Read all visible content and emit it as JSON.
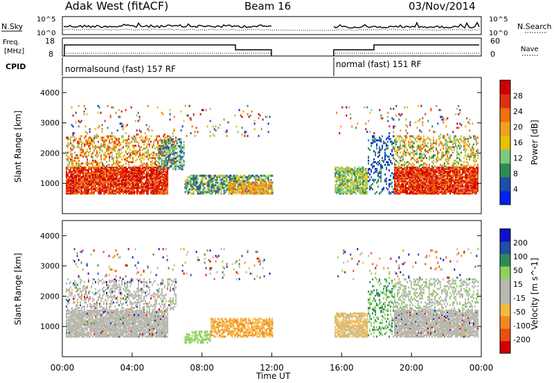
{
  "header": {
    "station": "Adak West (fitACF)",
    "beam": "Beam 16",
    "date": "03/Nov/2014"
  },
  "side_labels": {
    "nsky": "N.Sky",
    "nsearch": "N.Search",
    "freq_top": "Freq.",
    "freq_unit": "[MHz]",
    "nave": "Nave",
    "cpid": "CPID"
  },
  "noise_axis": {
    "left": [
      "10^5",
      "10^0"
    ],
    "right": [
      "10^5",
      "10^0"
    ]
  },
  "freq_axis": {
    "left": [
      "18",
      "8"
    ],
    "right": [
      "60",
      "0"
    ]
  },
  "cpid_labels": [
    "normalsound (fast) 157 RF",
    "normal (fast) 151 RF"
  ],
  "colors": {
    "power_scale": [
      "#0022ee",
      "#1f4fa8",
      "#2e8b57",
      "#7fc97f",
      "#e6c200",
      "#f0a020",
      "#f07010",
      "#e03010",
      "#d00000"
    ],
    "velocity_scale": [
      "#d00000",
      "#e85010",
      "#f08a20",
      "#f5b942",
      "#b8b8b0",
      "#b8b8b0",
      "#8fd060",
      "#2e8b57",
      "#1f4fa8",
      "#1010cc"
    ]
  },
  "chart_data": [
    {
      "type": "heatmap",
      "title": "Power",
      "ylabel": "Slant Range [km]",
      "ylim": [
        0,
        4500
      ],
      "yticks": [
        "1000",
        "2000",
        "3000",
        "4000"
      ],
      "xlim": [
        "00:00",
        "24:00"
      ],
      "colorbar_label": "Power [dB]",
      "colorbar_ticks": [
        "4",
        "8",
        "12",
        "16",
        "20",
        "24",
        "28"
      ],
      "colorbar_range": [
        0,
        30
      ]
    },
    {
      "type": "heatmap",
      "title": "Velocity",
      "ylabel": "Slant Range [km]",
      "ylim": [
        0,
        4500
      ],
      "yticks": [
        "1000",
        "2000",
        "3000",
        "4000"
      ],
      "xlim": [
        "00:00",
        "24:00"
      ],
      "xticks": [
        "00:00",
        "04:00",
        "08:00",
        "12:00",
        "16:00",
        "20:00",
        "00:00"
      ],
      "xlabel": "Time UT",
      "colorbar_label": "Velocity [m s^-1]",
      "colorbar_ticks": [
        "200",
        "100",
        "50",
        "15",
        "-15",
        "-50",
        "-100",
        "-200"
      ],
      "data_gap": [
        "12:00",
        "15:30"
      ]
    }
  ]
}
